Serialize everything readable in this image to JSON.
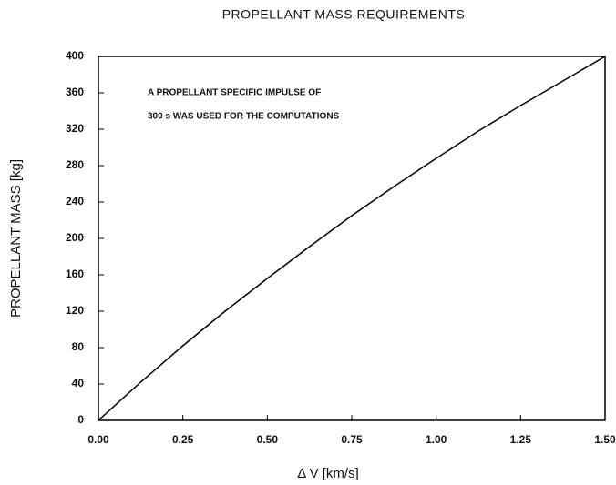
{
  "chart_data": {
    "type": "line",
    "title": "PROPELLANT MASS REQUIREMENTS",
    "xlabel": "Δ V  [km/s]",
    "ylabel": "PROPELLANT MASS  [kg]",
    "annotation": [
      "A PROPELLANT SPECIFIC IMPULSE OF",
      "300 s WAS USED FOR THE COMPUTATIONS"
    ],
    "x": [
      0,
      0.125,
      0.25,
      0.375,
      0.5,
      0.625,
      0.75,
      0.875,
      1.0,
      1.125,
      1.25,
      1.375,
      1.5
    ],
    "series": [
      {
        "color": "#000000",
        "values": [
          0,
          42,
          82,
          120,
          156,
          191,
          225,
          257,
          288,
          318,
          346,
          373,
          400
        ]
      }
    ],
    "xlim": [
      0,
      1.5
    ],
    "ylim": [
      0,
      400
    ],
    "xticks": [
      {
        "value": 0,
        "label": "0.00"
      },
      {
        "value": 0.25,
        "label": "0.25"
      },
      {
        "value": 0.5,
        "label": "0.50"
      },
      {
        "value": 0.75,
        "label": "0.75"
      },
      {
        "value": 1.0,
        "label": "1.00"
      },
      {
        "value": 1.25,
        "label": "1.25"
      },
      {
        "value": 1.5,
        "label": "1.50"
      }
    ],
    "yticks": [
      0,
      40,
      80,
      120,
      160,
      200,
      240,
      280,
      320,
      360,
      400
    ],
    "grid": false
  }
}
